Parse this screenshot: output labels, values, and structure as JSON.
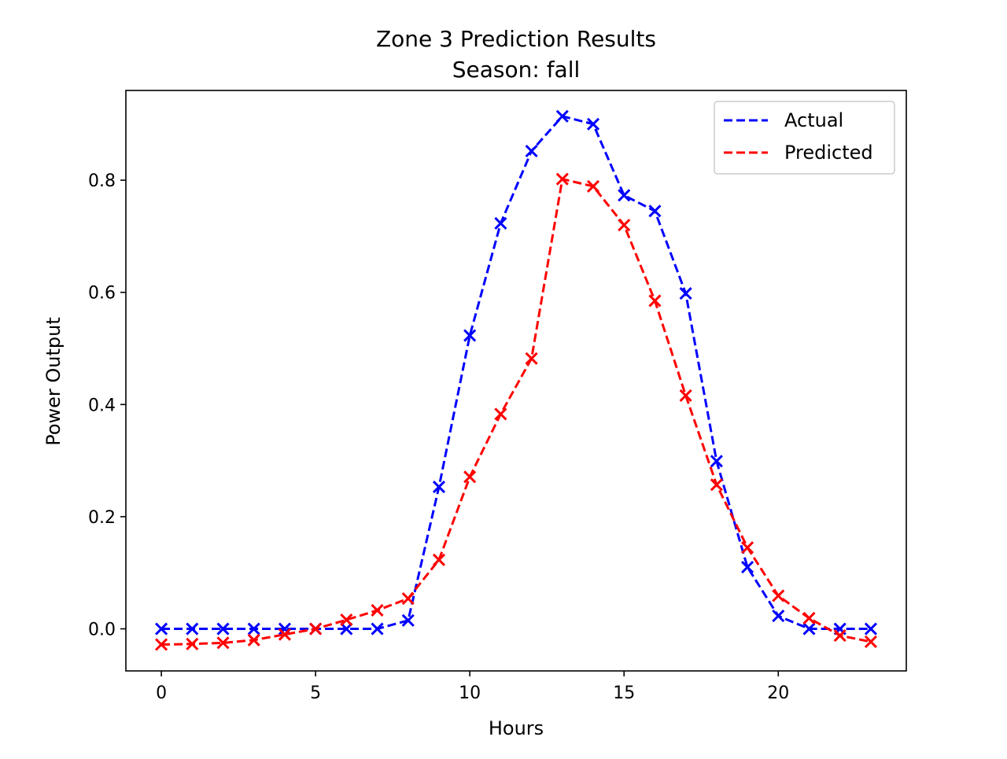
{
  "chart_data": {
    "type": "line",
    "title": "Zone 3 Prediction Results",
    "subtitle": "Season: fall",
    "xlabel": "Hours",
    "ylabel": "Power Output",
    "xlim": [
      -1.15,
      24.15
    ],
    "ylim": [
      -0.075,
      0.96
    ],
    "xticks": [
      0,
      5,
      10,
      15,
      20
    ],
    "xtick_labels": [
      "0",
      "5",
      "10",
      "15",
      "20"
    ],
    "yticks": [
      0.0,
      0.2,
      0.4,
      0.6,
      0.8
    ],
    "ytick_labels": [
      "0.0",
      "0.2",
      "0.4",
      "0.6",
      "0.8"
    ],
    "grid": false,
    "legend_position": "top-right",
    "x": [
      0,
      1,
      2,
      3,
      4,
      5,
      6,
      7,
      8,
      9,
      10,
      11,
      12,
      13,
      14,
      15,
      16,
      17,
      18,
      19,
      20,
      21,
      22,
      23
    ],
    "series": [
      {
        "name": "Actual",
        "color": "#0000ff",
        "line_style": "dashed",
        "marker": "x",
        "values": [
          0.0,
          0.0,
          0.0,
          0.0,
          0.0,
          0.0,
          0.0,
          0.0,
          0.015,
          0.253,
          0.523,
          0.723,
          0.852,
          0.914,
          0.9,
          0.773,
          0.745,
          0.598,
          0.299,
          0.11,
          0.023,
          0.0,
          0.0,
          0.0
        ]
      },
      {
        "name": "Predicted",
        "color": "#ff0000",
        "line_style": "dashed",
        "marker": "x",
        "values": [
          -0.028,
          -0.027,
          -0.025,
          -0.02,
          -0.01,
          0.0,
          0.016,
          0.033,
          0.054,
          0.123,
          0.271,
          0.383,
          0.482,
          0.802,
          0.789,
          0.72,
          0.585,
          0.416,
          0.257,
          0.145,
          0.059,
          0.019,
          -0.012,
          -0.023
        ]
      }
    ]
  }
}
